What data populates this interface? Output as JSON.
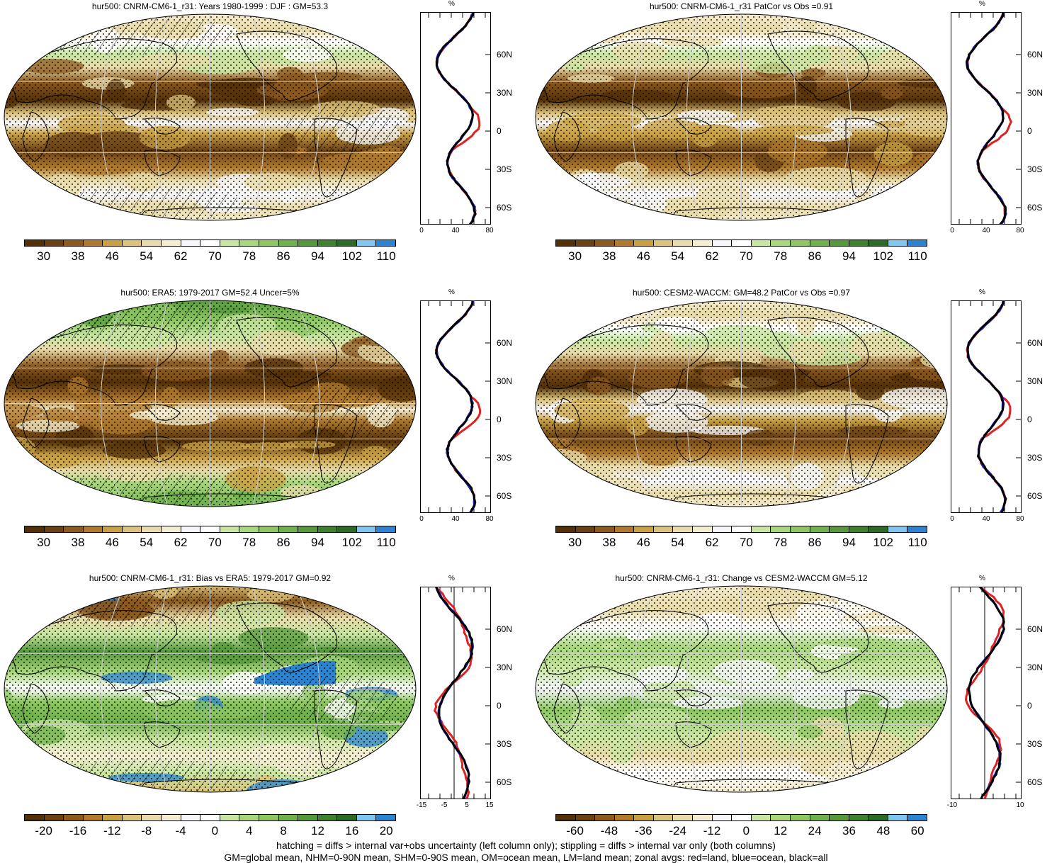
{
  "panels": [
    {
      "title": "hur500: CNRM-CM6-1_r31: Years 1980-1999 : DJF : GM=53.3",
      "base": "abs",
      "hatch": true,
      "seed": 1,
      "zonal_xticks": [
        "0",
        "40",
        "80"
      ],
      "zonal_unit": "%",
      "zonal_type": "abs",
      "colorbar_labels": [
        "30",
        "38",
        "46",
        "54",
        "62",
        "70",
        "78",
        "86",
        "94",
        "102",
        "110"
      ],
      "colorbar_type": "abs"
    },
    {
      "title": "hur500: CNRM-CM6-1_r31 PatCor vs Obs =0.91",
      "base": "abs",
      "hatch": false,
      "seed": 2,
      "zonal_xticks": [
        "0",
        "40",
        "80"
      ],
      "zonal_unit": "%",
      "zonal_type": "abs",
      "colorbar_labels": [
        "30",
        "38",
        "46",
        "54",
        "62",
        "70",
        "78",
        "86",
        "94",
        "102",
        "110"
      ],
      "colorbar_type": "abs"
    },
    {
      "title": "hur500: ERA5: 1979-2017 GM=52.4 Uncer=5%",
      "base": "abs2",
      "hatch": true,
      "seed": 3,
      "zonal_xticks": [
        "0",
        "40",
        "80"
      ],
      "zonal_unit": "%",
      "zonal_type": "abs",
      "colorbar_labels": [
        "30",
        "38",
        "46",
        "54",
        "62",
        "70",
        "78",
        "86",
        "94",
        "102",
        "110"
      ],
      "colorbar_type": "abs"
    },
    {
      "title": "hur500: CESM2-WACCM: GM=48.2 PatCor vs Obs =0.97",
      "base": "abs",
      "hatch": false,
      "seed": 4,
      "zonal_xticks": [
        "0",
        "40",
        "80"
      ],
      "zonal_unit": "%",
      "zonal_type": "abs",
      "colorbar_labels": [
        "30",
        "38",
        "46",
        "54",
        "62",
        "70",
        "78",
        "86",
        "94",
        "102",
        "110"
      ],
      "colorbar_type": "abs"
    },
    {
      "title": "hur500: CNRM-CM6-1_r31: Bias vs ERA5: 1979-2017 GM=0.92",
      "base": "bias",
      "hatch": true,
      "seed": 5,
      "zonal_xticks": [
        "-15",
        "-5",
        "5",
        "15"
      ],
      "zonal_unit": "%",
      "zonal_type": "bias",
      "colorbar_labels": [
        "-20",
        "-16",
        "-12",
        "-8",
        "-4",
        "0",
        "4",
        "8",
        "12",
        "16",
        "20"
      ],
      "colorbar_type": "diff"
    },
    {
      "title": "hur500: CNRM-CM6-1_r31: Change vs CESM2-WACCM GM=5.12",
      "base": "change",
      "hatch": false,
      "seed": 6,
      "zonal_xticks": [
        "-10",
        "10"
      ],
      "zonal_unit": "%",
      "zonal_type": "change",
      "colorbar_labels": [
        "-60",
        "-48",
        "-36",
        "-24",
        "-12",
        "0",
        "12",
        "24",
        "36",
        "48",
        "60"
      ],
      "colorbar_type": "diff"
    }
  ],
  "lat_labels": [
    "60N",
    "30N",
    "0",
    "30S",
    "60S"
  ],
  "colors": {
    "abs": [
      "#543005",
      "#6b4111",
      "#8c5a1c",
      "#b07a2a",
      "#c9a141",
      "#dcc27a",
      "#eadcaa",
      "#f4edd0",
      "#f6f7fb",
      "#ffffff",
      "#c8e6a0",
      "#a8d77c",
      "#8cc760",
      "#6fb14a",
      "#55993a",
      "#3f822e",
      "#2c6b26",
      "#7fc6f0",
      "#2a84d2"
    ],
    "diff": [
      "#543005",
      "#6b4111",
      "#8c5a1c",
      "#b07a2a",
      "#c9a141",
      "#dcc27a",
      "#eadcaa",
      "#f4edd0",
      "#f6f7fb",
      "#ffffff",
      "#c8e6a0",
      "#a8d77c",
      "#8cc760",
      "#6fb14a",
      "#55993a",
      "#3f822e",
      "#2c6b26",
      "#7fc6f0",
      "#2a84d2"
    ],
    "land": "#d22",
    "ocean": "#22d",
    "all": "#000"
  },
  "footer_line1": "hatching = diffs > internal var+obs uncertainty (left column only); stippling = diffs > internal var only (both columns)",
  "footer_line2": "GM=global mean, NHM=0-90N mean, SHM=0-90S mean, OM=ocean mean, LM=land mean; zonal avgs: red=land, blue=ocean, black=all"
}
